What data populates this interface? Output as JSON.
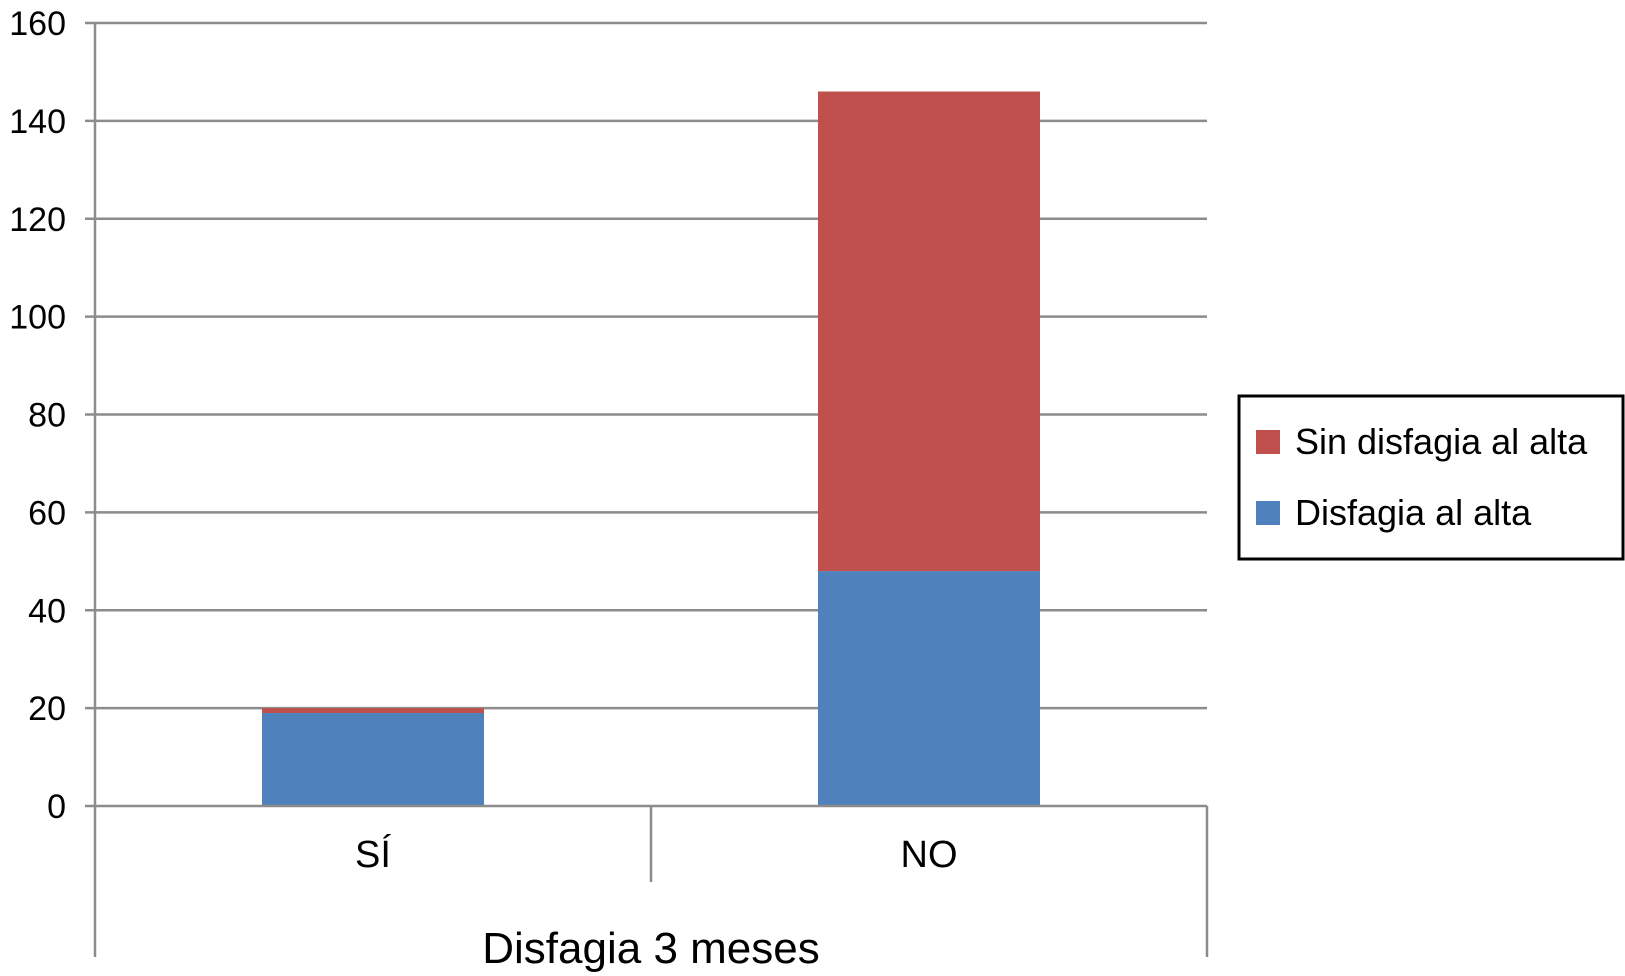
{
  "chart_data": {
    "type": "bar",
    "stacked": true,
    "categories": [
      "SÍ",
      "NO"
    ],
    "group_label": "Disfagia 3 meses",
    "series": [
      {
        "name": "Disfagia al alta",
        "values": [
          19,
          48
        ],
        "color": "#4f81bd"
      },
      {
        "name": "Sin disfagia al alta",
        "values": [
          1,
          98
        ],
        "color": "#c0504d"
      }
    ],
    "ylim": [
      0,
      160
    ],
    "yticks": [
      0,
      20,
      40,
      60,
      80,
      100,
      120,
      140,
      160
    ],
    "grid": true,
    "legend_position": "right",
    "legend_order": [
      "Sin disfagia al alta",
      "Disfagia al alta"
    ]
  }
}
